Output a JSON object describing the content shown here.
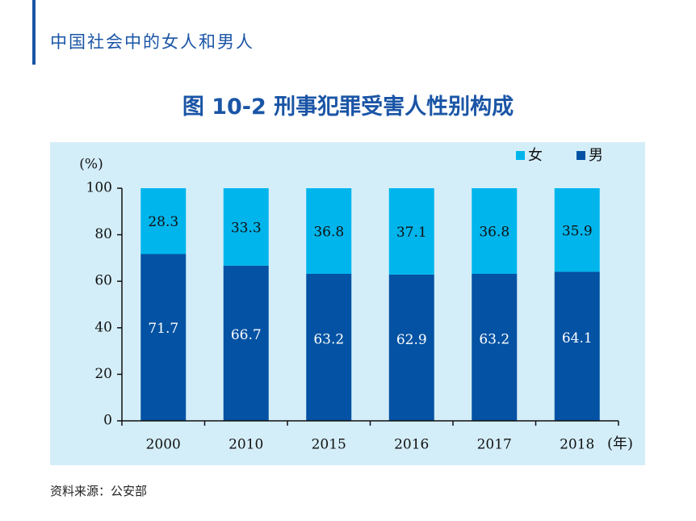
{
  "header": {
    "book_title": "中国社会中的女人和男人"
  },
  "figure": {
    "title": "图 10-2  刑事犯罪受害人性别构成"
  },
  "source": "资料来源：公安部",
  "colors": {
    "female": "#00b5ec",
    "male": "#0352a3",
    "panel_bg": "#d4eef9",
    "accent": "#1a55a6"
  },
  "chart_data": {
    "type": "bar",
    "stacked": true,
    "title": "图 10-2  刑事犯罪受害人性别构成",
    "categories": [
      "2000",
      "2010",
      "2015",
      "2016",
      "2017",
      "2018"
    ],
    "series": [
      {
        "name": "男",
        "values": [
          71.7,
          66.7,
          63.2,
          62.9,
          63.2,
          64.1
        ]
      },
      {
        "name": "女",
        "values": [
          28.3,
          33.3,
          36.8,
          37.1,
          36.8,
          35.9
        ]
      }
    ],
    "value_labels": {
      "男": [
        "71.7",
        "66.7",
        "63.2",
        "62.9",
        "63.2",
        "64.1"
      ],
      "女": [
        "28.3",
        "33.3",
        "36.8",
        "37.1",
        "36.8",
        "35.9"
      ]
    },
    "ylabel": "(%)",
    "xlabel": "(年)",
    "ylim": [
      0,
      100
    ],
    "yticks": [
      "0",
      "20",
      "40",
      "60",
      "80",
      "100"
    ],
    "legend": {
      "position": "top-right",
      "labels": [
        "女",
        "男"
      ]
    },
    "grid": false
  }
}
